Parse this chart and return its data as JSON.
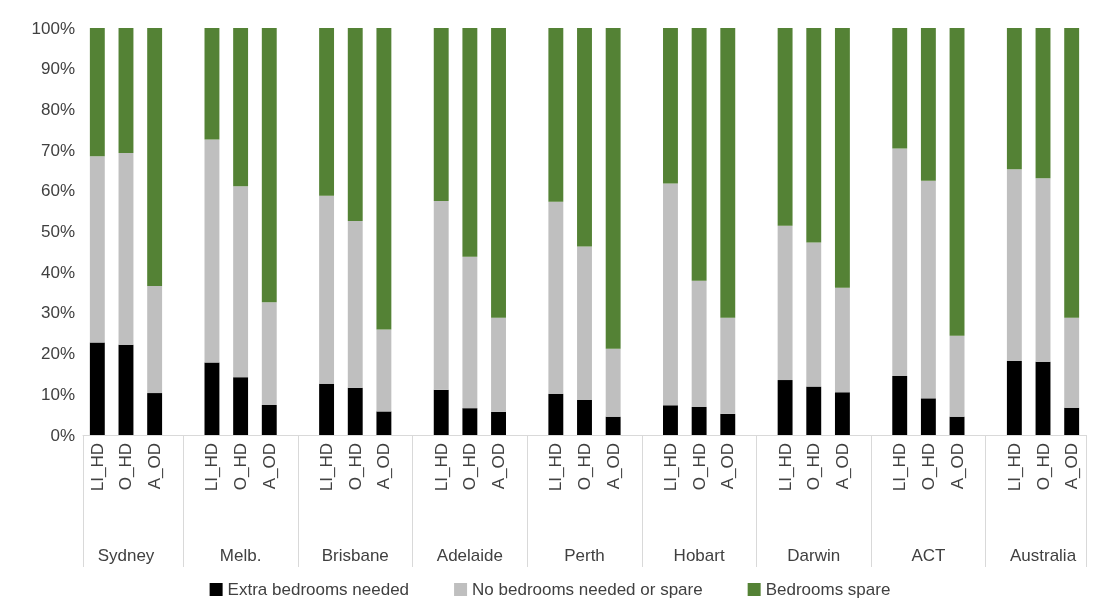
{
  "chart_data": {
    "type": "bar",
    "stacked": true,
    "categories": [
      "LI_HD",
      "O_HD",
      "A_OD",
      null,
      "LI_HD",
      "O_HD",
      "A_OD",
      null,
      "LI_HD",
      "O_HD",
      "A_OD",
      null,
      "LI_HD",
      "O_HD",
      "A_OD",
      null,
      "LI_HD",
      "O_HD",
      "A_OD",
      null,
      "LI_HD",
      "O_HD",
      "A_OD",
      null,
      "LI_HD",
      "O_HD",
      "A_OD",
      null,
      "LI_HD",
      "O_HD",
      "A_OD",
      null,
      "LI_HD",
      "O_HD",
      "A_OD"
    ],
    "annotations": [
      "Sydney",
      "Melb.",
      "Brisbane",
      "Adelaide",
      "Perth",
      "Hobart",
      "Darwin",
      "ACT",
      "Australia"
    ],
    "series": [
      {
        "name": "Extra bedrooms needed",
        "color": "#000000",
        "values": [
          22.7,
          22.2,
          10.3,
          null,
          17.8,
          14.2,
          7.4,
          null,
          12.6,
          11.6,
          5.8,
          null,
          11.1,
          6.6,
          5.7,
          null,
          10.1,
          8.6,
          4.5,
          null,
          7.3,
          6.9,
          5.2,
          null,
          13.5,
          11.9,
          10.5,
          null,
          14.5,
          9.0,
          4.5,
          null,
          18.2,
          18.0,
          6.7
        ]
      },
      {
        "name": "No bedrooms needed or spare",
        "color": "#bfbfbf",
        "values": [
          45.8,
          47.1,
          26.3,
          null,
          54.8,
          46.9,
          25.2,
          null,
          46.2,
          41.0,
          20.1,
          null,
          46.4,
          37.2,
          23.1,
          null,
          47.2,
          37.7,
          16.7,
          null,
          54.5,
          31.0,
          23.6,
          null,
          37.9,
          35.4,
          25.7,
          null,
          55.9,
          53.5,
          19.9,
          null,
          47.1,
          45.1,
          22.1
        ]
      },
      {
        "name": "Bedrooms spare",
        "color": "#548235",
        "values": [
          31.5,
          30.7,
          63.4,
          null,
          27.4,
          38.9,
          67.4,
          null,
          41.2,
          47.4,
          74.1,
          null,
          42.5,
          56.2,
          71.2,
          null,
          42.7,
          53.7,
          78.8,
          null,
          38.2,
          62.1,
          71.2,
          null,
          48.6,
          52.7,
          63.8,
          null,
          29.6,
          37.5,
          75.6,
          null,
          34.7,
          36.9,
          71.2
        ]
      }
    ],
    "ylim": [
      0,
      100
    ],
    "yticks": [
      {
        "value": 0,
        "label": "0%"
      },
      {
        "value": 10,
        "label": "10%"
      },
      {
        "value": 20,
        "label": "20%"
      },
      {
        "value": 30,
        "label": "30%"
      },
      {
        "value": 40,
        "label": "40%"
      },
      {
        "value": 50,
        "label": "50%"
      },
      {
        "value": 60,
        "label": "60%"
      },
      {
        "value": 70,
        "label": "70%"
      },
      {
        "value": 80,
        "label": "80%"
      },
      {
        "value": 90,
        "label": "90%"
      },
      {
        "value": 100,
        "label": "100%"
      }
    ],
    "grid": false,
    "legend": "bottom"
  }
}
